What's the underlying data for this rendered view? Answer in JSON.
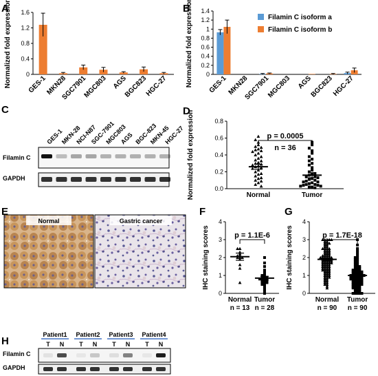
{
  "panels": {
    "A": "A",
    "B": "B",
    "C": "C",
    "D": "D",
    "E": "E",
    "F": "F",
    "G": "G",
    "H": "H"
  },
  "colors": {
    "isoform_a": "#5b9bd5",
    "isoform_b": "#ed7d31",
    "axis": "#000000"
  },
  "chart_data": [
    {
      "id": "A",
      "type": "bar",
      "categories": [
        "GES-1",
        "MKN28",
        "SGC7901",
        "MGC803",
        "AGS",
        "BGC823",
        "HGC-27"
      ],
      "series": [
        {
          "values": [
            1.28,
            0.03,
            0.18,
            0.12,
            0.05,
            0.13,
            0.03
          ],
          "errors": [
            0.3,
            0.02,
            0.06,
            0.06,
            0.02,
            0.06,
            0.02
          ]
        }
      ],
      "ylabel": "Normalized fold expression",
      "ylim": [
        0,
        1.6
      ],
      "yticks": [
        "0",
        "0.4",
        "0.8",
        "1.2",
        "1.6"
      ],
      "grid": false
    },
    {
      "id": "B",
      "type": "bar",
      "categories": [
        "GES-1",
        "MKN28",
        "SGC7901",
        "MGC803",
        "AGS",
        "BGC823",
        "HGC-27"
      ],
      "series": [
        {
          "name": "Filamin C isoform a",
          "values": [
            0.93,
            0.0,
            0.01,
            0.0,
            0.0,
            0.0,
            0.03
          ],
          "errors": [
            0.06,
            0.0,
            0.01,
            0.0,
            0.0,
            0.0,
            0.02
          ]
        },
        {
          "name": "Filamin C isoform b",
          "values": [
            1.05,
            0.0,
            0.02,
            0.0,
            0.01,
            0.01,
            0.09
          ],
          "errors": [
            0.15,
            0.0,
            0.01,
            0.0,
            0.0,
            0.01,
            0.05
          ]
        }
      ],
      "ylabel": "Normalized fold expression",
      "ylim": [
        0,
        1.4
      ],
      "yticks": [
        "0",
        "0.2",
        "0.4",
        "0.6",
        "0.8",
        "1",
        "1.2",
        "1.4"
      ],
      "legend": "top-right",
      "grid": false
    },
    {
      "id": "D",
      "type": "scatter",
      "categories": [
        "Normal",
        "Tumor"
      ],
      "series": [
        {
          "name": "Normal",
          "mean": 0.26,
          "sem": 0.03,
          "n": 36,
          "values": [
            0.62,
            0.58,
            0.55,
            0.52,
            0.5,
            0.49,
            0.47,
            0.46,
            0.45,
            0.44,
            0.42,
            0.4,
            0.38,
            0.36,
            0.34,
            0.33,
            0.31,
            0.3,
            0.29,
            0.28,
            0.27,
            0.26,
            0.25,
            0.24,
            0.22,
            0.2,
            0.18,
            0.17,
            0.15,
            0.13,
            0.12,
            0.1,
            0.09,
            0.07,
            0.05,
            0.03
          ]
        },
        {
          "name": "Tumor",
          "mean": 0.16,
          "sem": 0.03,
          "n": 36,
          "values": [
            0.55,
            0.52,
            0.48,
            0.45,
            0.42,
            0.38,
            0.35,
            0.33,
            0.3,
            0.28,
            0.25,
            0.22,
            0.2,
            0.18,
            0.17,
            0.16,
            0.15,
            0.14,
            0.13,
            0.12,
            0.11,
            0.1,
            0.09,
            0.08,
            0.08,
            0.07,
            0.06,
            0.05,
            0.05,
            0.04,
            0.04,
            0.03,
            0.03,
            0.02,
            0.02,
            0.01
          ]
        }
      ],
      "ylabel": "Normalized fold expression",
      "ylim": [
        0,
        0.8
      ],
      "yticks": [
        "0.0",
        "0.2",
        "0.4",
        "0.6",
        "0.8"
      ],
      "annotation_p": "p = 0.0005",
      "annotation_n": "n = 36"
    },
    {
      "id": "F",
      "type": "scatter",
      "categories": [
        "Normal",
        "Tumor"
      ],
      "cat_n": [
        "n = 13",
        "n = 28"
      ],
      "series": [
        {
          "name": "Normal",
          "mean": 2.05,
          "sem": 0.2,
          "n": 13,
          "values": [
            2.5,
            2.5,
            2.3,
            2.2,
            2.1,
            2.1,
            2.0,
            2.0,
            2.0,
            1.9,
            1.6,
            1.4,
            0.6
          ]
        },
        {
          "name": "Tumor",
          "mean": 0.85,
          "sem": 0.1,
          "n": 28,
          "values": [
            2.0,
            1.7,
            1.5,
            1.3,
            1.2,
            1.1,
            1.0,
            1.0,
            0.9,
            0.9,
            0.9,
            0.8,
            0.8,
            0.8,
            0.8,
            0.7,
            0.7,
            0.7,
            0.6,
            0.6,
            0.6,
            0.5,
            0.5,
            0.4,
            0.3,
            0.2,
            0.1,
            0.0
          ]
        }
      ],
      "ylabel": "IHC staining scores",
      "ylim": [
        0,
        4
      ],
      "yticks": [
        "0",
        "1",
        "2",
        "3",
        "4"
      ],
      "annotation_p": "p = 1.1E-6"
    },
    {
      "id": "G",
      "type": "scatter",
      "categories": [
        "Normal",
        "Tumor"
      ],
      "cat_n": [
        "n = 90",
        "n = 90"
      ],
      "series": [
        {
          "name": "Normal",
          "mean": 1.9,
          "sem": 0.07,
          "n": 90,
          "values": [
            3.0,
            3.0,
            3.0,
            3.0,
            3.0,
            2.9,
            2.9,
            2.8,
            2.8,
            2.8,
            2.7,
            2.7,
            2.6,
            2.6,
            2.5,
            2.5,
            2.5,
            2.5,
            2.4,
            2.4,
            2.4,
            2.3,
            2.3,
            2.3,
            2.2,
            2.2,
            2.2,
            2.1,
            2.1,
            2.1,
            2.1,
            2.0,
            2.0,
            2.0,
            2.0,
            2.0,
            2.0,
            1.9,
            1.9,
            1.9,
            1.9,
            1.9,
            1.8,
            1.8,
            1.8,
            1.8,
            1.8,
            1.7,
            1.7,
            1.7,
            1.7,
            1.7,
            1.6,
            1.6,
            1.6,
            1.6,
            1.5,
            1.5,
            1.5,
            1.5,
            1.4,
            1.4,
            1.4,
            1.4,
            1.3,
            1.3,
            1.3,
            1.3,
            1.2,
            1.2,
            1.2,
            1.1,
            1.1,
            1.1,
            1.0,
            1.0,
            1.0,
            0.9,
            0.9,
            0.9,
            0.8,
            0.8,
            0.7,
            0.7,
            0.6,
            0.6,
            0.5,
            0.5,
            0.4,
            0.3
          ]
        },
        {
          "name": "Tumor",
          "mean": 1.0,
          "sem": 0.07,
          "n": 90,
          "values": [
            3.0,
            2.7,
            2.5,
            2.4,
            2.3,
            2.2,
            2.1,
            2.0,
            2.0,
            1.9,
            1.9,
            1.8,
            1.8,
            1.7,
            1.7,
            1.6,
            1.6,
            1.5,
            1.5,
            1.5,
            1.4,
            1.4,
            1.4,
            1.3,
            1.3,
            1.3,
            1.3,
            1.2,
            1.2,
            1.2,
            1.2,
            1.2,
            1.1,
            1.1,
            1.1,
            1.1,
            1.1,
            1.0,
            1.0,
            1.0,
            1.0,
            1.0,
            1.0,
            1.0,
            0.9,
            0.9,
            0.9,
            0.9,
            0.9,
            0.9,
            0.8,
            0.8,
            0.8,
            0.8,
            0.8,
            0.8,
            0.7,
            0.7,
            0.7,
            0.7,
            0.7,
            0.6,
            0.6,
            0.6,
            0.6,
            0.6,
            0.5,
            0.5,
            0.5,
            0.5,
            0.5,
            0.4,
            0.4,
            0.4,
            0.4,
            0.3,
            0.3,
            0.3,
            0.3,
            0.2,
            0.2,
            0.2,
            0.1,
            0.1,
            0.1,
            0.0,
            0.0,
            0.0,
            0.0,
            0.0
          ]
        }
      ],
      "ylabel": "IHC staining scores",
      "ylim": [
        0,
        4
      ],
      "yticks": [
        "0",
        "1",
        "2",
        "3",
        "4"
      ],
      "annotation_p": "p = 1.7E-18"
    }
  ],
  "blot_C": {
    "lanes": [
      "GES-1",
      "MKN-28",
      "NCI-N87",
      "SGC-7901",
      "MGC803",
      "AGS",
      "BGC-823",
      "MKN-45",
      "HGC-27"
    ],
    "rows": [
      "Filamin C",
      "GAPDH"
    ]
  },
  "ihc_E": {
    "labels": [
      "Normal",
      "Gastric cancer"
    ]
  },
  "blot_H": {
    "patients": [
      "Patient1",
      "Patient2",
      "Patient3",
      "Patient4"
    ],
    "lane_labels": [
      "T",
      "N"
    ],
    "rows": [
      "Filamin C",
      "GAPDH"
    ]
  }
}
